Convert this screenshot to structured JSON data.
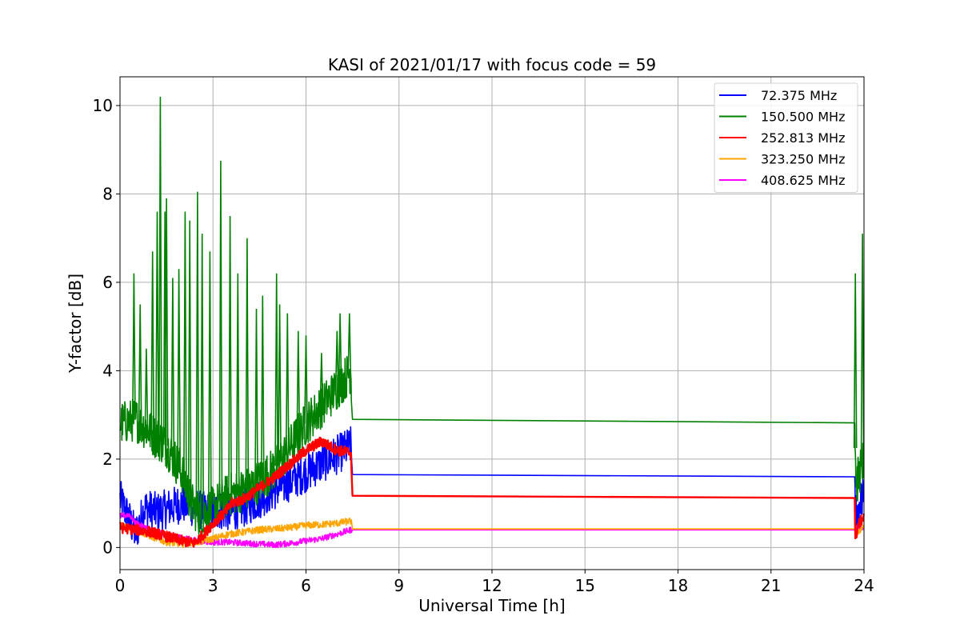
{
  "chart_data": {
    "type": "line",
    "title": "KASI of 2021/01/17 with focus code = 59",
    "xlabel": "Universal Time [h]",
    "ylabel": "Y-factor [dB]",
    "xlim": [
      0,
      24
    ],
    "ylim": [
      -0.5,
      10.65
    ],
    "xticks": [
      0,
      3,
      6,
      9,
      12,
      15,
      18,
      21,
      24
    ],
    "yticks": [
      0,
      2,
      4,
      6,
      8,
      10
    ],
    "grid": true,
    "legend_position": "top-right",
    "series": [
      {
        "name": " 72.375 MHz",
        "color": "#0000ff",
        "points": [
          [
            0,
            1.1
          ],
          [
            0.2,
            0.8
          ],
          [
            0.5,
            0.3
          ],
          [
            0.8,
            0.9
          ],
          [
            1.2,
            0.8
          ],
          [
            1.6,
            0.9
          ],
          [
            2.0,
            1.0
          ],
          [
            2.4,
            0.9
          ],
          [
            2.8,
            0.8
          ],
          [
            3.2,
            0.85
          ],
          [
            3.6,
            0.8
          ],
          [
            4.0,
            0.9
          ],
          [
            4.5,
            1.1
          ],
          [
            5.0,
            1.3
          ],
          [
            5.5,
            1.5
          ],
          [
            6.0,
            1.7
          ],
          [
            6.5,
            1.9
          ],
          [
            7.0,
            2.1
          ],
          [
            7.45,
            2.3
          ],
          [
            7.5,
            1.65
          ],
          [
            23.7,
            1.6
          ],
          [
            23.75,
            0.6
          ],
          [
            23.85,
            1.0
          ],
          [
            24.0,
            1.2
          ]
        ],
        "noise": 0.45
      },
      {
        "name": "150.500 MHz",
        "color": "#008000",
        "points": [
          [
            0,
            2.8
          ],
          [
            0.5,
            2.9
          ],
          [
            1.0,
            2.6
          ],
          [
            1.5,
            2.3
          ],
          [
            2.0,
            1.7
          ],
          [
            2.3,
            1.0
          ],
          [
            2.6,
            0.7
          ],
          [
            3.0,
            0.9
          ],
          [
            3.5,
            1.2
          ],
          [
            4.0,
            1.3
          ],
          [
            4.5,
            1.5
          ],
          [
            5.0,
            1.8
          ],
          [
            5.5,
            2.3
          ],
          [
            6.0,
            2.8
          ],
          [
            6.5,
            3.2
          ],
          [
            7.0,
            3.6
          ],
          [
            7.45,
            4.0
          ],
          [
            7.5,
            2.9
          ],
          [
            23.7,
            2.82
          ],
          [
            23.75,
            1.4
          ],
          [
            23.9,
            1.8
          ],
          [
            24.0,
            2.0
          ]
        ],
        "noise": 0.5,
        "spikes": [
          [
            0.45,
            6.2
          ],
          [
            0.65,
            5.5
          ],
          [
            0.85,
            4.5
          ],
          [
            1.05,
            6.7
          ],
          [
            1.2,
            7.6
          ],
          [
            1.3,
            10.2
          ],
          [
            1.45,
            7.6
          ],
          [
            1.5,
            7.9
          ],
          [
            1.7,
            6.1
          ],
          [
            1.9,
            6.3
          ],
          [
            2.1,
            7.6
          ],
          [
            2.25,
            7.4
          ],
          [
            2.5,
            8.05
          ],
          [
            2.65,
            7.1
          ],
          [
            2.9,
            6.7
          ],
          [
            3.25,
            8.75
          ],
          [
            3.55,
            7.5
          ],
          [
            3.8,
            6.2
          ],
          [
            4.1,
            7.0
          ],
          [
            4.4,
            5.4
          ],
          [
            4.6,
            5.7
          ],
          [
            5.05,
            6.2
          ],
          [
            5.15,
            5.5
          ],
          [
            5.4,
            5.3
          ],
          [
            5.75,
            4.9
          ],
          [
            6.0,
            4.8
          ],
          [
            6.5,
            4.4
          ],
          [
            7.0,
            4.9
          ],
          [
            7.1,
            5.3
          ],
          [
            7.4,
            5.3
          ],
          [
            23.72,
            6.2
          ],
          [
            23.95,
            7.1
          ]
        ]
      },
      {
        "name": "252.813 MHz",
        "color": "#ff0000",
        "points": [
          [
            0,
            0.45
          ],
          [
            0.5,
            0.4
          ],
          [
            1.0,
            0.35
          ],
          [
            1.5,
            0.25
          ],
          [
            2.0,
            0.15
          ],
          [
            2.4,
            0.1
          ],
          [
            2.7,
            0.3
          ],
          [
            3.0,
            0.55
          ],
          [
            3.4,
            0.8
          ],
          [
            3.6,
            1.0
          ],
          [
            4.0,
            1.1
          ],
          [
            4.5,
            1.35
          ],
          [
            5.0,
            1.6
          ],
          [
            5.5,
            1.9
          ],
          [
            6.0,
            2.2
          ],
          [
            6.5,
            2.4
          ],
          [
            7.0,
            2.2
          ],
          [
            7.45,
            2.15
          ],
          [
            7.5,
            1.17
          ],
          [
            23.7,
            1.12
          ],
          [
            23.72,
            0.15
          ],
          [
            23.8,
            0.5
          ],
          [
            24.0,
            0.7
          ]
        ],
        "noise": 0.12
      },
      {
        "name": "323.250 MHz",
        "color": "#ffa500",
        "points": [
          [
            0,
            0.5
          ],
          [
            0.5,
            0.4
          ],
          [
            1.0,
            0.25
          ],
          [
            1.5,
            0.12
          ],
          [
            2.0,
            0.08
          ],
          [
            2.5,
            0.12
          ],
          [
            3.0,
            0.2
          ],
          [
            3.5,
            0.3
          ],
          [
            4.0,
            0.35
          ],
          [
            4.5,
            0.4
          ],
          [
            5.0,
            0.42
          ],
          [
            5.5,
            0.45
          ],
          [
            6.0,
            0.5
          ],
          [
            6.5,
            0.52
          ],
          [
            7.0,
            0.55
          ],
          [
            7.45,
            0.6
          ],
          [
            7.5,
            0.42
          ],
          [
            23.7,
            0.42
          ],
          [
            23.75,
            0.3
          ],
          [
            24.0,
            0.5
          ]
        ],
        "noise": 0.08
      },
      {
        "name": "408.625 MHz",
        "color": "#ff00ff",
        "points": [
          [
            0,
            0.7
          ],
          [
            0.3,
            0.75
          ],
          [
            0.5,
            0.55
          ],
          [
            1.0,
            0.4
          ],
          [
            1.5,
            0.3
          ],
          [
            2.0,
            0.22
          ],
          [
            2.5,
            0.15
          ],
          [
            3.0,
            0.12
          ],
          [
            3.5,
            0.12
          ],
          [
            4.0,
            0.1
          ],
          [
            4.5,
            0.08
          ],
          [
            5.0,
            0.06
          ],
          [
            5.5,
            0.1
          ],
          [
            6.0,
            0.15
          ],
          [
            6.5,
            0.2
          ],
          [
            7.0,
            0.3
          ],
          [
            7.45,
            0.4
          ],
          [
            7.5,
            0.4
          ],
          [
            23.7,
            0.4
          ],
          [
            23.75,
            0.45
          ],
          [
            24.0,
            0.45
          ]
        ],
        "noise": 0.07
      }
    ]
  }
}
